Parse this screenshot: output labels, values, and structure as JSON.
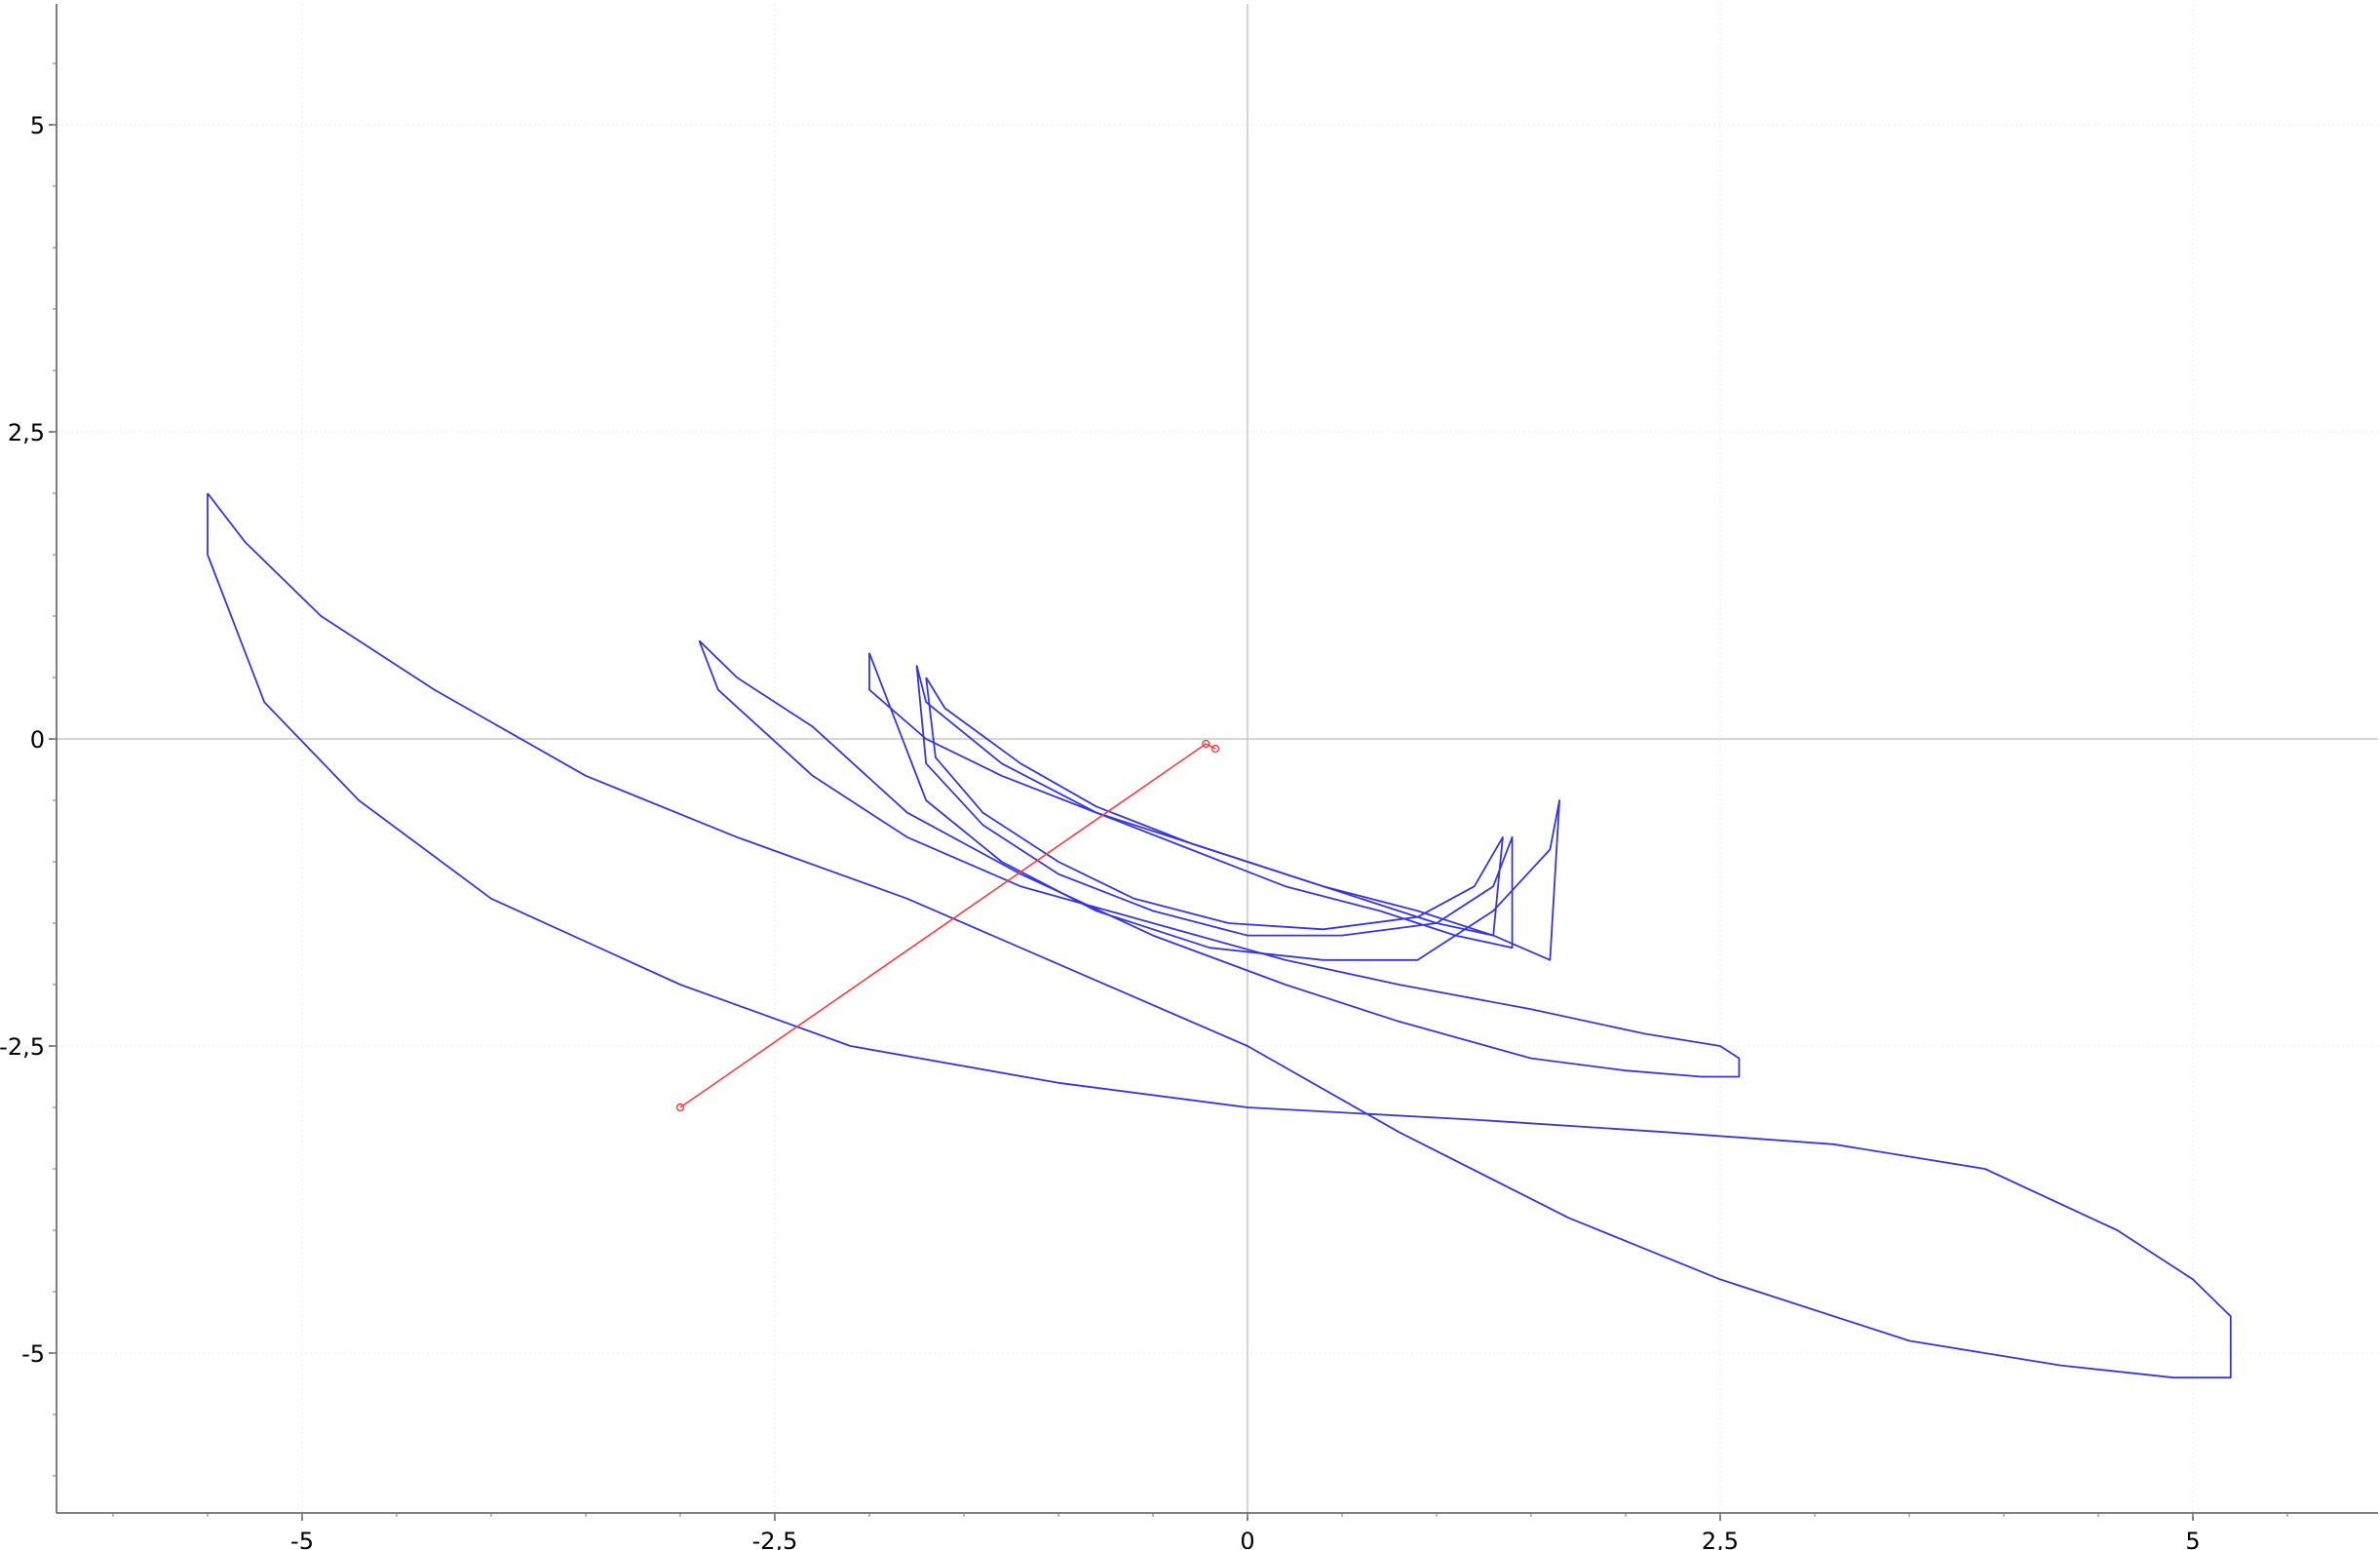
{
  "chart_data": {
    "type": "line",
    "title": "",
    "xlabel": "",
    "ylabel": "",
    "xlim": [
      -6.3,
      5.9
    ],
    "ylim": [
      -6.3,
      5.9
    ],
    "grid": true,
    "x_ticks": [
      {
        "value": -5,
        "label": "-5"
      },
      {
        "value": -2.5,
        "label": "-2,5"
      },
      {
        "value": 0,
        "label": "0"
      },
      {
        "value": 2.5,
        "label": "2,5"
      },
      {
        "value": 5,
        "label": "5"
      }
    ],
    "y_ticks": [
      {
        "value": 5,
        "label": "5"
      },
      {
        "value": 2.5,
        "label": "2,5"
      },
      {
        "value": 0,
        "label": "0"
      },
      {
        "value": -2.5,
        "label": "-2,5"
      },
      {
        "value": -5,
        "label": "-5"
      }
    ],
    "series": [
      {
        "color": "#3535e6",
        "style": "closed-curve",
        "x": [
          -5.5,
          -5.5,
          -5.2,
          -4.7,
          -4.0,
          -3.0,
          -2.1,
          -1.0,
          0.0,
          1.2,
          2.2,
          3.1,
          3.9,
          4.6,
          5.0,
          5.2,
          5.2,
          4.9,
          4.3,
          3.5,
          2.5,
          1.7,
          0.8,
          0.0,
          -0.9,
          -1.8,
          -2.7,
          -3.5,
          -4.3,
          -4.9,
          -5.3,
          -5.5
        ],
        "y": [
          2.0,
          1.5,
          0.3,
          -0.5,
          -1.3,
          -2.0,
          -2.5,
          -2.8,
          -3.0,
          -3.1,
          -3.2,
          -3.3,
          -3.5,
          -4.0,
          -4.4,
          -4.7,
          -5.2,
          -5.2,
          -5.1,
          -4.9,
          -4.4,
          -3.9,
          -3.2,
          -2.5,
          -1.9,
          -1.3,
          -0.8,
          -0.3,
          0.4,
          1.0,
          1.6,
          2.0
        ]
      },
      {
        "color": "#3535e6",
        "style": "closed-curve",
        "x": [
          -2.9,
          -2.8,
          -2.3,
          -1.8,
          -1.2,
          -0.5,
          0.2,
          0.8,
          1.5,
          2.1,
          2.5,
          2.6,
          2.6,
          2.4,
          2.0,
          1.5,
          0.8,
          0.2,
          -0.5,
          -1.2,
          -1.8,
          -2.3,
          -2.7,
          -2.9
        ],
        "y": [
          0.8,
          0.4,
          -0.3,
          -0.8,
          -1.2,
          -1.5,
          -1.8,
          -2.0,
          -2.2,
          -2.4,
          -2.5,
          -2.6,
          -2.75,
          -2.75,
          -2.7,
          -2.6,
          -2.3,
          -2.0,
          -1.6,
          -1.1,
          -0.6,
          0.1,
          0.5,
          0.8
        ]
      },
      {
        "color": "#3535e6",
        "style": "closed-curve",
        "x": [
          -2.0,
          -2.0,
          -1.7,
          -1.3,
          -0.8,
          -0.2,
          0.4,
          0.9,
          1.3,
          1.6,
          1.65,
          1.6,
          1.3,
          0.9,
          0.4,
          -0.2,
          -0.8,
          -1.3,
          -1.7,
          -2.0
        ],
        "y": [
          0.7,
          0.4,
          0.0,
          -0.3,
          -0.6,
          -0.9,
          -1.2,
          -1.4,
          -1.6,
          -1.8,
          -0.5,
          -0.9,
          -1.4,
          -1.8,
          -1.8,
          -1.7,
          -1.4,
          -1.0,
          -0.5,
          0.7
        ]
      },
      {
        "color": "#3535e6",
        "style": "closed-curve",
        "x": [
          -1.75,
          -1.7,
          -1.3,
          -0.8,
          -0.3,
          0.2,
          0.7,
          1.1,
          1.4,
          1.4,
          1.3,
          1.0,
          0.5,
          0.0,
          -0.5,
          -1.0,
          -1.4,
          -1.7,
          -1.75
        ],
        "y": [
          0.6,
          0.3,
          -0.2,
          -0.6,
          -0.9,
          -1.2,
          -1.4,
          -1.6,
          -1.7,
          -0.8,
          -1.2,
          -1.5,
          -1.6,
          -1.6,
          -1.4,
          -1.1,
          -0.7,
          -0.2,
          0.6
        ]
      },
      {
        "color": "#3535e6",
        "style": "closed-curve",
        "x": [
          -1.7,
          -1.6,
          -1.2,
          -0.8,
          -0.3,
          0.2,
          0.6,
          1.0,
          1.3,
          1.35,
          1.2,
          0.9,
          0.4,
          -0.1,
          -0.6,
          -1.0,
          -1.4,
          -1.65,
          -1.7
        ],
        "y": [
          0.5,
          0.25,
          -0.2,
          -0.55,
          -0.85,
          -1.1,
          -1.3,
          -1.5,
          -1.6,
          -0.8,
          -1.2,
          -1.45,
          -1.55,
          -1.5,
          -1.3,
          -1.0,
          -0.6,
          -0.15,
          0.5
        ]
      },
      {
        "color": "#ff3b3b",
        "style": "polyline-with-markers",
        "x": [
          -3.0,
          -0.22,
          -0.17
        ],
        "y": [
          -3.0,
          -0.04,
          -0.08
        ]
      }
    ]
  }
}
